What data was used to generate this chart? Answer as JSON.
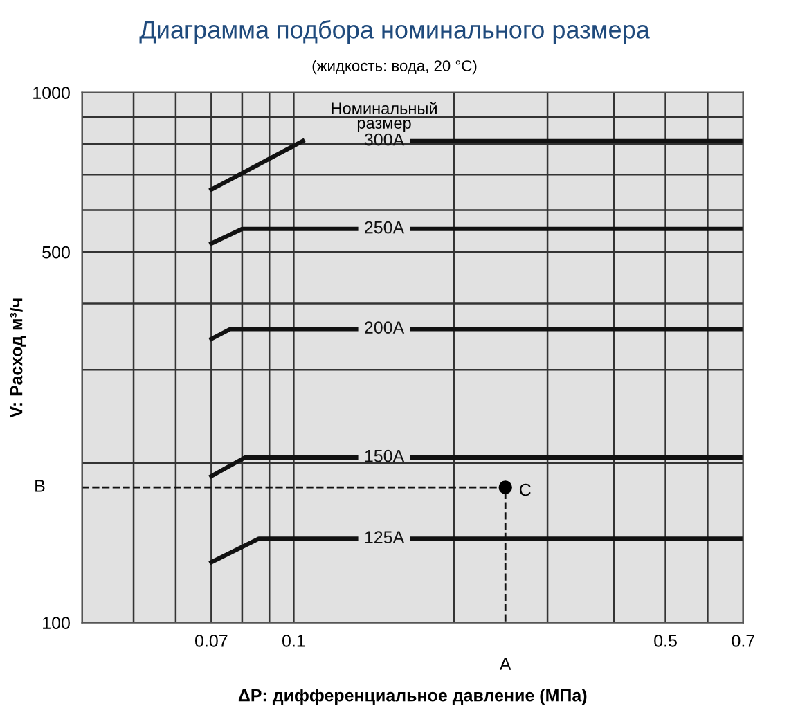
{
  "chart_data": {
    "type": "line",
    "title": "Диаграмма подбора номинального размера",
    "subtitle": "(жидкость: вода, 20 °C)",
    "xlabel": "ΔP: дифференциальное давление (МПа)",
    "ylabel": "V: Расход м³/ч",
    "legend_title": "Номинальный\nразмер",
    "log": "xy",
    "grid": true,
    "legend": false,
    "tick_labels": "xy",
    "xlim": [
      0.04,
      0.7
    ],
    "ylim": [
      100,
      1000
    ],
    "xticks": [
      {
        "value": 0.04,
        "label": null
      },
      {
        "value": 0.05,
        "label": null
      },
      {
        "value": 0.06,
        "label": null
      },
      0.07,
      {
        "value": 0.08,
        "label": null
      },
      {
        "value": 0.09,
        "label": null
      },
      0.1,
      {
        "value": 0.2,
        "label": null
      },
      {
        "value": 0.3,
        "label": null
      },
      {
        "value": 0.4,
        "label": null
      },
      0.5,
      {
        "value": 0.6,
        "label": null
      },
      0.7
    ],
    "yticks": [
      100,
      {
        "value": 200,
        "label": null
      },
      {
        "value": 300,
        "label": null
      },
      {
        "value": 400,
        "label": null
      },
      500,
      {
        "value": 600,
        "label": null
      },
      {
        "value": 700,
        "label": null
      },
      {
        "value": 800,
        "label": null
      },
      {
        "value": 900,
        "label": null
      },
      1000
    ],
    "series": [
      {
        "name": "300A",
        "color": "#111111",
        "x": [
          0.07,
          0.104,
          0.131,
          0.167,
          0.7
        ],
        "values": [
          656,
          810,
          null,
          810,
          810
        ]
      },
      {
        "name": "250A",
        "color": "#111111",
        "x": [
          0.07,
          0.08,
          0.131,
          0.167,
          0.7
        ],
        "values": [
          519,
          553,
          553,
          553,
          553
        ]
      },
      {
        "name": "200A",
        "color": "#111111",
        "x": [
          0.07,
          0.076,
          0.131,
          0.167,
          0.7
        ],
        "values": [
          343,
          358,
          358,
          358,
          358
        ]
      },
      {
        "name": "150A",
        "color": "#111111",
        "x": [
          0.07,
          0.081,
          0.131,
          0.167,
          0.7
        ],
        "values": [
          189,
          205,
          205,
          205,
          205
        ]
      },
      {
        "name": "125A",
        "color": "#111111",
        "x": [
          0.07,
          0.086,
          0.131,
          0.167,
          0.7
        ],
        "values": [
          130,
          144,
          144,
          144,
          144
        ]
      },
      {
        "color": "#111111",
        "line_style": "dashed",
        "x": [
          0.04,
          0.25,
          0.25
        ],
        "values": [
          180,
          180,
          100
        ]
      },
      {
        "type": "scatter",
        "marker": "circle",
        "color": "#000000",
        "x": [
          0.25
        ],
        "values": [
          180
        ]
      }
    ],
    "annotations": [
      "B",
      {
        "text": "C",
        "x": 0.25,
        "y": 180
      },
      "A"
    ]
  }
}
